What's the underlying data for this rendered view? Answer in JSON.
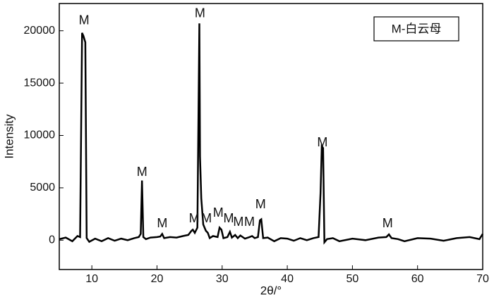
{
  "chart_data": {
    "type": "line",
    "x_label": "2θ/°",
    "y_label": "Intensity",
    "legend_text": "M-白云母",
    "xlim": [
      5,
      70
    ],
    "ylim": [
      -2800,
      22600
    ],
    "xticks": [
      10,
      20,
      30,
      40,
      50,
      60,
      70
    ],
    "yticks": [
      0,
      5000,
      10000,
      15000,
      20000
    ],
    "series": [
      {
        "color": "#000000",
        "x": [
          5,
          6,
          7,
          7.8,
          8.2,
          8.5,
          8.7,
          9.0,
          9.2,
          9.6,
          10.5,
          11.5,
          12.5,
          13.5,
          14.5,
          15.5,
          16.5,
          17.2,
          17.5,
          17.7,
          17.9,
          18.3,
          19,
          20,
          20.5,
          20.8,
          21.1,
          22,
          23,
          24,
          24.8,
          25.3,
          25.5,
          25.8,
          26.2,
          26.5,
          26.6,
          26.8,
          27.1,
          27.5,
          27.8,
          28.1,
          28.6,
          29.3,
          29.6,
          29.9,
          30.2,
          30.8,
          31.2,
          31.5,
          32,
          32.4,
          32.8,
          33.5,
          34.2,
          34.6,
          35,
          35.5,
          35.8,
          36.0,
          36.3,
          37,
          38,
          39,
          40,
          41,
          42,
          43,
          44,
          44.8,
          45.1,
          45.3,
          45.5,
          45.7,
          46.1,
          47,
          48,
          50,
          52,
          54,
          55.2,
          55.6,
          56,
          57,
          58,
          60,
          62,
          64,
          66,
          68,
          69.5,
          70
        ],
        "values": [
          100,
          250,
          -100,
          400,
          300,
          19800,
          19500,
          18900,
          200,
          -150,
          150,
          -100,
          200,
          -50,
          150,
          0,
          200,
          300,
          600,
          5700,
          300,
          100,
          250,
          300,
          350,
          600,
          200,
          300,
          250,
          400,
          500,
          900,
          1000,
          700,
          1200,
          20700,
          8000,
          4000,
          1500,
          900,
          700,
          200,
          400,
          300,
          1200,
          1000,
          200,
          300,
          800,
          250,
          500,
          200,
          450,
          150,
          300,
          400,
          200,
          300,
          1900,
          2000,
          200,
          250,
          -100,
          200,
          150,
          -50,
          200,
          0,
          200,
          300,
          4500,
          9000,
          8800,
          -200,
          100,
          200,
          -100,
          150,
          0,
          250,
          300,
          550,
          200,
          100,
          -100,
          200,
          150,
          -50,
          200,
          300,
          100,
          600
        ]
      }
    ],
    "annotations": [
      {
        "text": "M",
        "x": 8.8,
        "y": 20940
      },
      {
        "text": "M",
        "x": 17.7,
        "y": 6460
      },
      {
        "text": "M",
        "x": 20.8,
        "y": 1550
      },
      {
        "text": "M",
        "x": 25.7,
        "y": 2020
      },
      {
        "text": "M",
        "x": 26.6,
        "y": 21600
      },
      {
        "text": "M",
        "x": 27.6,
        "y": 2020
      },
      {
        "text": "M",
        "x": 29.4,
        "y": 2560
      },
      {
        "text": "M",
        "x": 31.0,
        "y": 2020
      },
      {
        "text": "M",
        "x": 32.5,
        "y": 1700
      },
      {
        "text": "M",
        "x": 34.2,
        "y": 1700
      },
      {
        "text": "M",
        "x": 35.9,
        "y": 3370
      },
      {
        "text": "M",
        "x": 45.4,
        "y": 9290
      },
      {
        "text": "M",
        "x": 55.4,
        "y": 1550
      }
    ]
  }
}
